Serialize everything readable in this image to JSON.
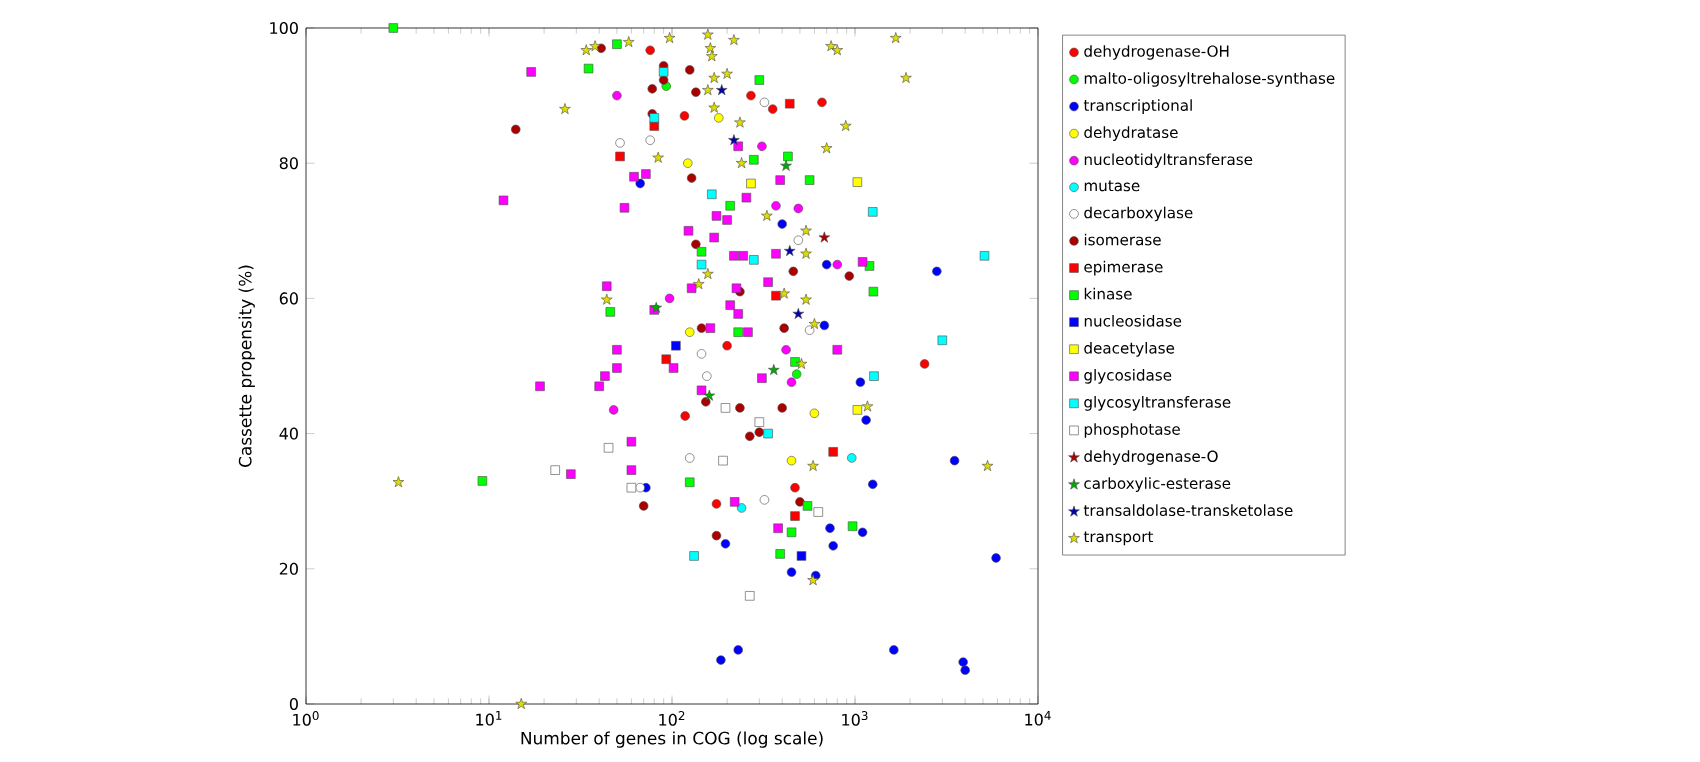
{
  "chart_data": {
    "type": "scatter",
    "xlabel": "Number of genes in COG (log scale)",
    "ylabel": "Cassette propensity (%)",
    "log": "x",
    "xlim": [
      1,
      10000
    ],
    "ylim": [
      0,
      100
    ],
    "xticks": [
      {
        "value": 1,
        "label": "10$^{0}$"
      },
      {
        "value": 10,
        "label": "10$^{1}$"
      },
      {
        "value": 100,
        "label": "10$^{2}$"
      },
      {
        "value": 1000,
        "label": "10$^{3}$"
      },
      {
        "value": 10000,
        "label": "10$^{4}$"
      }
    ],
    "yticks": [
      0,
      20,
      40,
      60,
      80,
      100
    ],
    "legend": "right",
    "grid": false,
    "series": [
      {
        "name": "dehydrogenase-OH",
        "color": "#ff0000",
        "marker": "circle",
        "x": [
          76,
          117,
          660,
          270,
          355,
          118,
          175,
          470,
          2400,
          200
        ],
        "values": [
          96.7,
          87,
          89,
          90,
          88,
          42.6,
          29.6,
          32,
          50.3,
          53
        ]
      },
      {
        "name": "malto-oligosyltrehalose-synthase",
        "color": "#00ff00",
        "marker": "circle",
        "x": [
          93,
          480
        ],
        "values": [
          91.4,
          48.8
        ]
      },
      {
        "name": "transcriptional",
        "color": "#0000ff",
        "marker": "circle",
        "x": [
          67,
          72,
          400,
          700,
          2800,
          680,
          1070,
          1150,
          1250,
          3500,
          5900,
          730,
          760,
          1100,
          450,
          610,
          196,
          185,
          230,
          1630,
          3900,
          4000
        ],
        "values": [
          77,
          32,
          71,
          65,
          64,
          56,
          47.6,
          42,
          32.5,
          36,
          21.6,
          26,
          23.4,
          25.4,
          19.5,
          19,
          23.7,
          6.5,
          8,
          8,
          6.2,
          5
        ]
      },
      {
        "name": "dehydratase",
        "color": "#ffff00",
        "marker": "circle",
        "x": [
          180,
          122,
          125,
          600,
          450
        ],
        "values": [
          86.7,
          80,
          55,
          43,
          36
        ]
      },
      {
        "name": "nucleotidyltransferase",
        "color": "#ff00ff",
        "marker": "circle",
        "x": [
          50,
          97,
          48,
          310,
          370,
          490,
          800,
          420,
          450
        ],
        "values": [
          90,
          60,
          43.5,
          82.5,
          73.7,
          73.3,
          65,
          52.4,
          47.6
        ]
      },
      {
        "name": "mutase",
        "color": "#00ffff",
        "marker": "circle",
        "x": [
          960,
          240
        ],
        "values": [
          36.4,
          29
        ]
      },
      {
        "name": "decarboxylase",
        "color": "#ffffff",
        "marker": "circle",
        "x": [
          52,
          76,
          320,
          490,
          565,
          145,
          155,
          125,
          320,
          67
        ],
        "values": [
          83,
          83.4,
          89,
          68.6,
          55.3,
          51.8,
          48.5,
          36.4,
          30.2,
          32
        ]
      },
      {
        "name": "isomerase",
        "color": "#aa0000",
        "marker": "circle",
        "x": [
          14,
          41,
          78,
          90,
          90,
          78,
          125,
          135,
          128,
          135,
          930,
          460,
          235,
          410,
          145,
          153,
          235,
          400,
          266,
          300,
          500,
          175,
          70
        ],
        "values": [
          85,
          97,
          91,
          94.4,
          92.3,
          87.3,
          93.8,
          90.5,
          77.8,
          68,
          63.3,
          64,
          61,
          55.6,
          55.6,
          44.7,
          43.8,
          43.8,
          39.6,
          40.2,
          29.9,
          24.9,
          29.3
        ]
      },
      {
        "name": "epimerase",
        "color": "#ff0000",
        "marker": "square",
        "x": [
          52,
          80,
          93,
          440,
          370,
          760,
          470
        ],
        "values": [
          81,
          85.5,
          51,
          88.8,
          60.4,
          37.3,
          27.8
        ]
      },
      {
        "name": "kinase",
        "color": "#00ff00",
        "marker": "square",
        "x": [
          3,
          50,
          35,
          46,
          9.2,
          300,
          430,
          280,
          565,
          208,
          145,
          1200,
          1260,
          230,
          125,
          550,
          970,
          450,
          390,
          470
        ],
        "values": [
          100,
          97.6,
          94,
          58,
          33,
          92.3,
          81,
          80.5,
          77.5,
          73.7,
          66.9,
          64.8,
          61,
          55,
          32.8,
          29.3,
          26.3,
          25.4,
          22.2,
          50.6
        ]
      },
      {
        "name": "nucleosidase",
        "color": "#0000ff",
        "marker": "square",
        "x": [
          510,
          105
        ],
        "values": [
          21.9,
          53
        ]
      },
      {
        "name": "deacetylase",
        "color": "#ffff00",
        "marker": "square",
        "x": [
          270,
          1030,
          1030
        ],
        "values": [
          77,
          77.2,
          43.5
        ]
      },
      {
        "name": "glycosidase",
        "color": "#ff00ff",
        "marker": "square",
        "x": [
          17,
          12,
          55,
          62,
          72,
          44,
          50,
          80,
          19,
          40,
          43,
          50,
          60,
          60,
          28,
          102,
          230,
          390,
          255,
          175,
          200,
          123,
          170,
          218,
          245,
          370,
          1100,
          335,
          225,
          208,
          230,
          260,
          162,
          128,
          800,
          145,
          310,
          220,
          380
        ],
        "values": [
          93.5,
          74.5,
          73.4,
          78,
          78.4,
          61.8,
          52.4,
          58.3,
          47,
          47,
          48.5,
          49.7,
          38.8,
          34.6,
          34,
          49.7,
          82.5,
          77.5,
          74.9,
          72.2,
          71.6,
          70,
          69,
          66.3,
          66.3,
          66.6,
          65.4,
          62.4,
          61.5,
          59,
          57.7,
          55,
          55.6,
          61.5,
          52.4,
          46.4,
          48.2,
          29.9,
          26
        ]
      },
      {
        "name": "glycosyltransferase",
        "color": "#00ffff",
        "marker": "square",
        "x": [
          90,
          80,
          165,
          1250,
          5100,
          280,
          145,
          3000,
          1270,
          335,
          132
        ],
        "values": [
          93.5,
          86.7,
          75.4,
          72.8,
          66.3,
          65.7,
          65,
          53.8,
          48.5,
          40,
          21.9
        ]
      },
      {
        "name": "phosphotase",
        "color": "#ffffff",
        "marker": "square",
        "x": [
          196,
          300,
          190,
          630,
          266,
          45,
          23,
          60
        ],
        "values": [
          43.8,
          41.7,
          36,
          28.4,
          16,
          37.9,
          34.6,
          32
        ]
      },
      {
        "name": "dehydrogenase-O",
        "color": "#aa0000",
        "marker": "star",
        "x": [
          680
        ],
        "values": [
          69
        ]
      },
      {
        "name": "carboxylic-esterase",
        "color": "#00aa00",
        "marker": "star",
        "x": [
          420,
          82,
          360,
          160
        ],
        "values": [
          79.6,
          58.6,
          49.4,
          45.6
        ]
      },
      {
        "name": "transaldolase-transketolase",
        "color": "#0000aa",
        "marker": "star",
        "x": [
          187,
          218,
          440,
          490
        ],
        "values": [
          90.8,
          83.4,
          67,
          57.7
        ]
      },
      {
        "name": "transport",
        "color": "#dddd00",
        "marker": "star",
        "x": [
          26,
          34,
          38,
          58,
          97,
          84,
          44,
          157,
          218,
          162,
          165,
          200,
          170,
          157,
          170,
          235,
          740,
          800,
          1670,
          1900,
          890,
          700,
          240,
          330,
          540,
          540,
          157,
          140,
          410,
          540,
          600,
          510,
          3.2,
          15,
          1170,
          590,
          5300,
          590
        ],
        "values": [
          88,
          96.7,
          97.3,
          97.9,
          98.5,
          80.8,
          59.8,
          99,
          98.2,
          97,
          95.8,
          93.2,
          92.6,
          90.8,
          88.2,
          86,
          97.3,
          96.7,
          98.5,
          92.6,
          85.5,
          82.2,
          80,
          72.2,
          70,
          66.6,
          63.6,
          62.1,
          60.7,
          59.8,
          56.2,
          50.3,
          32.8,
          0,
          44,
          35.2,
          35.2,
          18.3
        ]
      }
    ]
  }
}
